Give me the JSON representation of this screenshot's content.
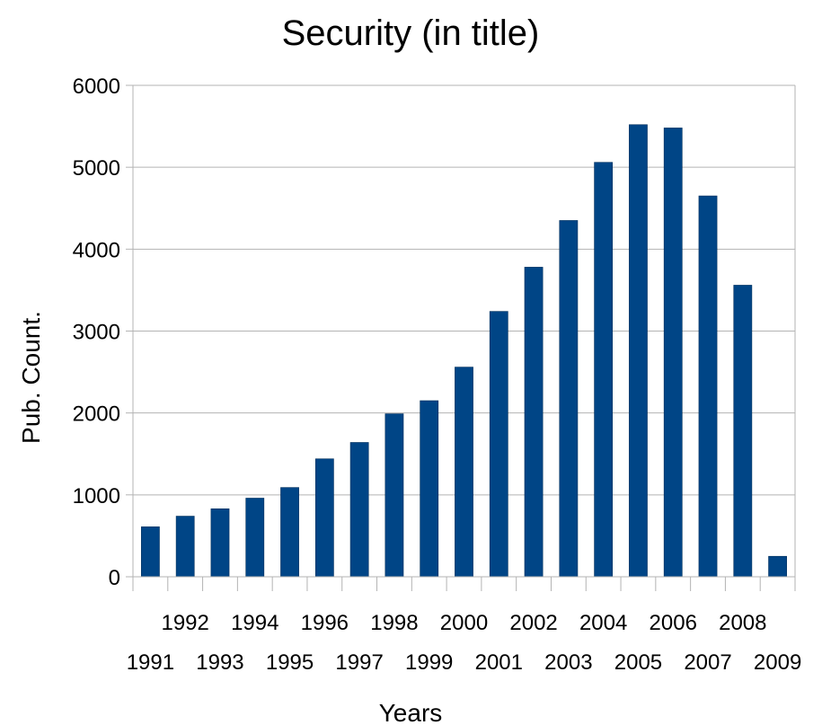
{
  "chart_data": {
    "type": "bar",
    "title": "Security (in title)",
    "xlabel": "Years",
    "ylabel": "Pub. Count.",
    "categories": [
      "1991",
      "1992",
      "1993",
      "1994",
      "1995",
      "1996",
      "1997",
      "1998",
      "1999",
      "2000",
      "2001",
      "2002",
      "2003",
      "2004",
      "2005",
      "2006",
      "2007",
      "2008",
      "2009"
    ],
    "values": [
      610,
      740,
      830,
      960,
      1090,
      1440,
      1640,
      1990,
      2150,
      2560,
      3240,
      3780,
      4350,
      5060,
      5520,
      5480,
      4650,
      3560,
      250
    ],
    "ylim": [
      0,
      6000
    ],
    "yticks": [
      0,
      1000,
      2000,
      3000,
      4000,
      5000,
      6000
    ],
    "grid": true,
    "bar_color": "#004586"
  }
}
